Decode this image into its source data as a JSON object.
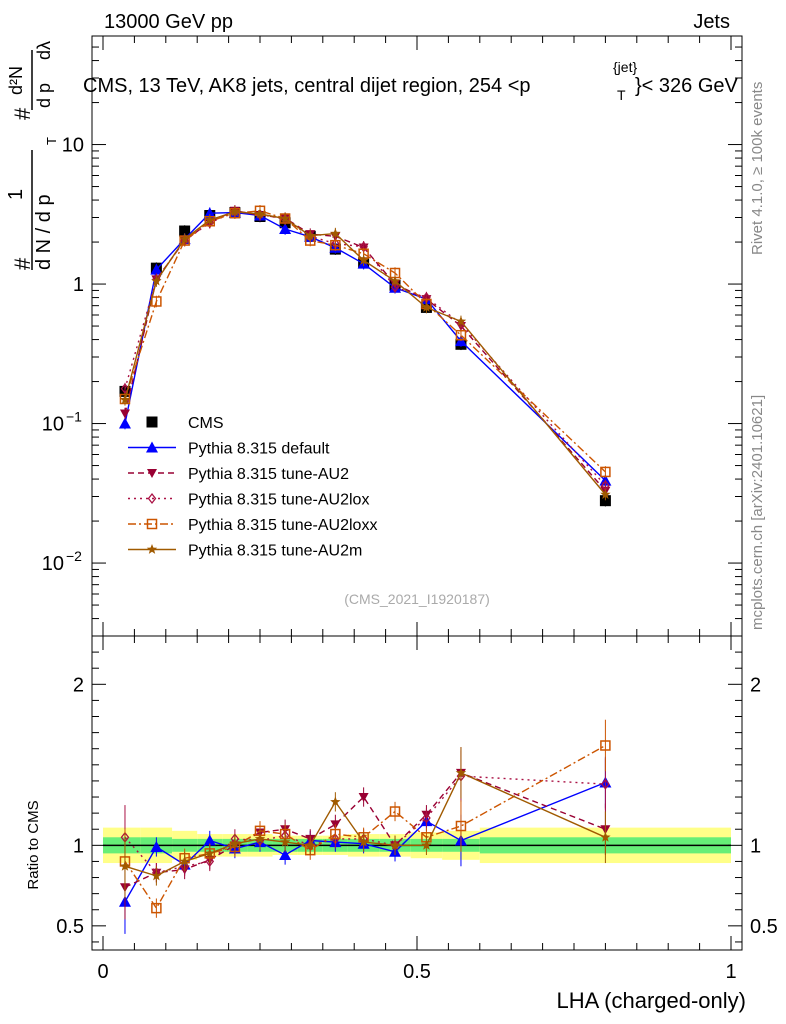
{
  "header": {
    "energy": "13000 GeV pp",
    "category": "Jets"
  },
  "title": "CMS, 13 TeV, AK8 jets, central dijet region, 254 <p",
  "title_sup": "{jet}",
  "title_sub": "T",
  "title_end": "}< 326 GeV",
  "side_right_top": "Rivet 4.1.0, ≥ 100k events",
  "side_right_bottom": "mcplots.cern.ch [arXiv:2401.10621]",
  "analysis_id": "(CMS_2021_I1920187)",
  "colors": {
    "data": "#000000",
    "default": "#0000ff",
    "AU2": "#990033",
    "AU2lox": "#aa1144",
    "AU2loxx": "#cc5500",
    "AU2m": "#a05a00",
    "band_inner": "#66ee77",
    "band_outer": "#ffff88"
  },
  "chart_data": [
    {
      "type": "scatter",
      "panel": "main",
      "yscale": "log",
      "ylabel_parts": {
        "hash": "#",
        "frac_num": "1",
        "frac_den": "d N / d p",
        "hash2": "#",
        "d2N": "d²N",
        "den2": "d p",
        "dlambda": "dλ",
        "sub": "T"
      },
      "xlim": [
        0,
        1
      ],
      "ylim": [
        0.003,
        60
      ],
      "yticks": [
        {
          "value": 0.01,
          "label": "10",
          "exp": "−2"
        },
        {
          "value": 0.1,
          "label": "10",
          "exp": "−1"
        },
        {
          "value": 1,
          "label": "1",
          "exp": ""
        },
        {
          "value": 10,
          "label": "10",
          "exp": ""
        }
      ],
      "x": [
        0.035,
        0.085,
        0.13,
        0.17,
        0.21,
        0.25,
        0.29,
        0.33,
        0.37,
        0.415,
        0.465,
        0.515,
        0.57,
        0.8
      ],
      "series": [
        {
          "name": "CMS",
          "key": "data",
          "style": "square",
          "values": [
            0.17,
            1.3,
            2.4,
            3.1,
            3.25,
            3.05,
            2.75,
            2.2,
            1.78,
            1.42,
            0.98,
            0.68,
            0.37,
            0.028
          ]
        },
        {
          "name": "Pythia 8.315 default",
          "key": "default",
          "style": "triangle-up",
          "dash": "",
          "values": [
            0.1,
            1.27,
            2.1,
            3.22,
            3.25,
            3.1,
            2.48,
            2.18,
            1.82,
            1.4,
            0.94,
            0.78,
            0.39,
            0.039
          ]
        },
        {
          "name": "Pythia 8.315 tune-AU2",
          "key": "AU2",
          "style": "triangle-down",
          "dash": "6,4",
          "values": [
            0.118,
            1.08,
            2.05,
            2.78,
            3.35,
            3.12,
            2.97,
            2.28,
            2.2,
            1.83,
            1.0,
            0.78,
            0.5,
            0.033
          ]
        },
        {
          "name": "Pythia 8.315 tune-AU2lox",
          "key": "AU2lox",
          "style": "diamond",
          "dash": "2,4",
          "values": [
            0.178,
            1.08,
            2.05,
            2.75,
            3.3,
            3.15,
            2.92,
            2.2,
            1.95,
            1.85,
            0.95,
            0.8,
            0.52,
            0.036
          ]
        },
        {
          "name": "Pythia 8.315 tune-AU2loxx",
          "key": "AU2loxx",
          "style": "square-open",
          "dash": "8,3,2,3",
          "values": [
            0.15,
            0.75,
            2.05,
            2.82,
            3.22,
            3.35,
            2.95,
            2.05,
            1.9,
            1.65,
            1.2,
            0.72,
            0.43,
            0.045
          ]
        },
        {
          "name": "Pythia 8.315 tune-AU2m",
          "key": "AU2m",
          "style": "star",
          "dash": "",
          "values": [
            0.148,
            1.05,
            2.1,
            2.88,
            3.3,
            3.18,
            2.95,
            2.22,
            2.3,
            1.48,
            1.05,
            0.68,
            0.54,
            0.031
          ]
        }
      ]
    },
    {
      "type": "scatter",
      "panel": "ratio",
      "ylabel": "Ratio to CMS",
      "xlabel": "LHA (charged-only)",
      "xlim": [
        0,
        1
      ],
      "ylim": [
        0.35,
        2.3
      ],
      "xticks": [
        {
          "value": 0,
          "label": "0"
        },
        {
          "value": 0.5,
          "label": "0.5"
        },
        {
          "value": 1,
          "label": "1"
        }
      ],
      "yticks": [
        {
          "value": 0.5,
          "label": "0.5"
        },
        {
          "value": 1,
          "label": "1"
        },
        {
          "value": 2,
          "label": "2"
        }
      ],
      "x": [
        0.035,
        0.085,
        0.13,
        0.17,
        0.21,
        0.25,
        0.29,
        0.33,
        0.37,
        0.415,
        0.465,
        0.515,
        0.57,
        0.8
      ],
      "series": [
        {
          "name": "Pythia 8.315 default",
          "key": "default",
          "style": "triangle-up",
          "dash": "",
          "values": [
            0.65,
            0.99,
            0.88,
            1.03,
            0.98,
            1.02,
            0.94,
            1.03,
            1.02,
            1.01,
            0.96,
            1.15,
            1.03,
            1.39
          ]
        },
        {
          "name": "Pythia 8.315 tune-AU2",
          "key": "AU2",
          "style": "triangle-down",
          "dash": "6,4",
          "values": [
            0.74,
            0.83,
            0.85,
            0.91,
            1.0,
            1.08,
            1.1,
            1.04,
            1.13,
            1.3,
            1.0,
            1.19,
            1.45,
            1.1
          ]
        },
        {
          "name": "Pythia 8.315 tune-AU2lox",
          "key": "AU2lox",
          "style": "diamond",
          "dash": "2,4",
          "values": [
            1.05,
            0.83,
            0.87,
            0.9,
            1.04,
            1.03,
            1.06,
            1.0,
            1.04,
            1.04,
            1.0,
            1.17,
            1.43,
            1.38
          ]
        },
        {
          "name": "Pythia 8.315 tune-AU2loxx",
          "key": "AU2loxx",
          "style": "square-open",
          "dash": "8,3,2,3",
          "values": [
            0.9,
            0.61,
            0.92,
            0.95,
            0.99,
            1.09,
            1.07,
            0.97,
            1.07,
            1.05,
            1.21,
            1.05,
            1.12,
            1.62
          ]
        },
        {
          "name": "Pythia 8.315 tune-AU2m",
          "key": "AU2m",
          "style": "star",
          "dash": "",
          "values": [
            0.87,
            0.81,
            0.9,
            0.95,
            1.01,
            1.04,
            1.02,
            1.0,
            1.27,
            1.02,
            1.0,
            1.0,
            1.45,
            1.05
          ]
        }
      ],
      "data_band": {
        "x_edges": [
          0,
          0.06,
          0.11,
          0.15,
          0.19,
          0.23,
          0.27,
          0.31,
          0.35,
          0.39,
          0.44,
          0.49,
          0.54,
          0.6,
          1.0
        ],
        "inner_halfwidth": [
          0.05,
          0.05,
          0.04,
          0.04,
          0.04,
          0.04,
          0.04,
          0.04,
          0.04,
          0.04,
          0.04,
          0.04,
          0.04,
          0.05
        ],
        "outer_halfwidth": [
          0.11,
          0.11,
          0.09,
          0.07,
          0.07,
          0.07,
          0.06,
          0.06,
          0.06,
          0.07,
          0.07,
          0.08,
          0.09,
          0.11
        ]
      }
    }
  ],
  "legend": [
    {
      "label": "CMS",
      "key": "data"
    },
    {
      "label": "Pythia 8.315 default",
      "key": "default"
    },
    {
      "label": "Pythia 8.315 tune-AU2",
      "key": "AU2"
    },
    {
      "label": "Pythia 8.315 tune-AU2lox",
      "key": "AU2lox"
    },
    {
      "label": "Pythia 8.315 tune-AU2loxx",
      "key": "AU2loxx"
    },
    {
      "label": "Pythia 8.315 tune-AU2m",
      "key": "AU2m"
    }
  ]
}
